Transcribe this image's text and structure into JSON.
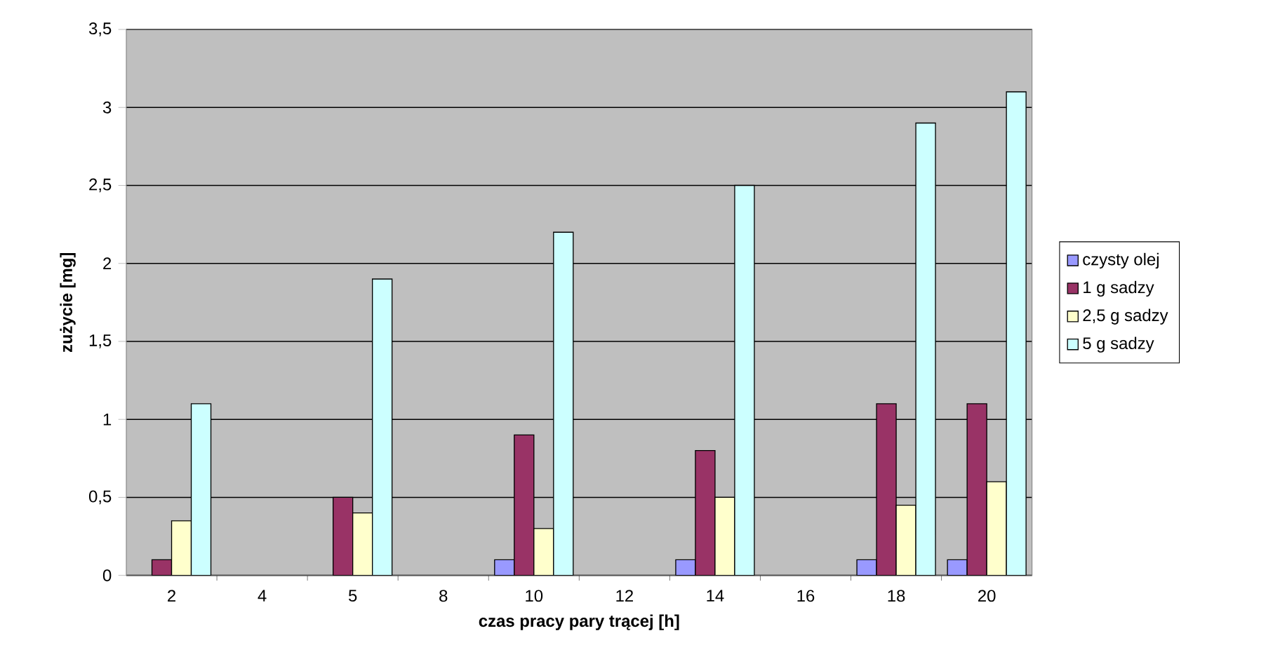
{
  "chart_data": {
    "type": "bar",
    "xlabel": "czas pracy pary trącej [h]",
    "ylabel": "zużycie [mg]",
    "categories": [
      "2",
      "4",
      "5",
      "8",
      "10",
      "12",
      "14",
      "16",
      "18",
      "20"
    ],
    "series": [
      {
        "name": "czysty olej",
        "color": "#9999ff",
        "values": [
          null,
          null,
          null,
          null,
          0.1,
          null,
          0.1,
          null,
          0.1,
          0.1
        ]
      },
      {
        "name": "1 g sadzy",
        "color": "#993366",
        "values": [
          0.1,
          null,
          0.5,
          null,
          0.9,
          null,
          0.8,
          null,
          1.1,
          1.1
        ]
      },
      {
        "name": "2,5 g sadzy",
        "color": "#ffffcc",
        "values": [
          0.35,
          null,
          0.4,
          null,
          0.3,
          null,
          0.5,
          null,
          0.45,
          0.6
        ]
      },
      {
        "name": "5 g sadzy",
        "color": "#ccffff",
        "values": [
          1.1,
          null,
          1.9,
          null,
          2.2,
          null,
          2.5,
          null,
          2.9,
          3.1
        ]
      }
    ],
    "ylim": [
      0,
      3.5
    ],
    "yticks": [
      0,
      {
        "value": 0.5,
        "label": "0,5"
      },
      1,
      {
        "value": 1.5,
        "label": "1,5"
      },
      2,
      {
        "value": 2.5,
        "label": "2,5"
      },
      3,
      {
        "value": 3.5,
        "label": "3,5"
      }
    ],
    "grid": "y",
    "legend": "right"
  }
}
